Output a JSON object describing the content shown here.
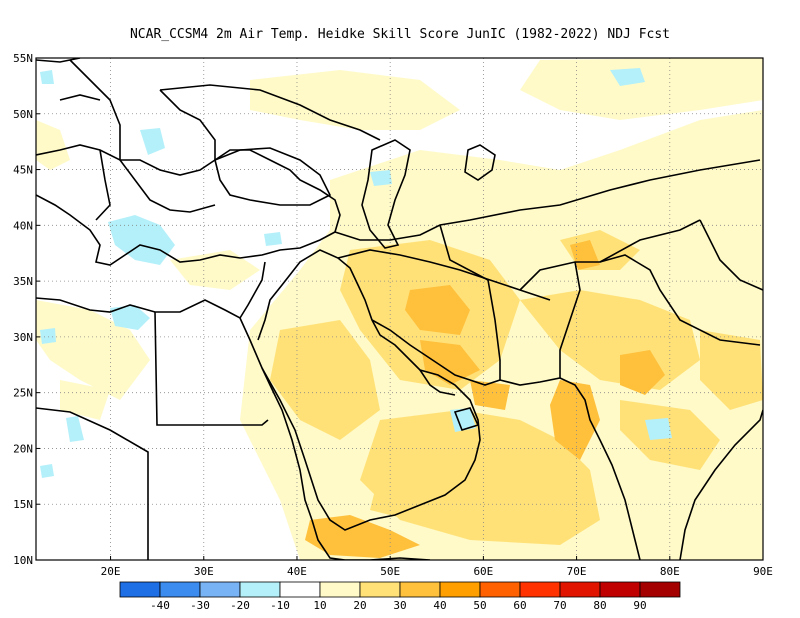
{
  "title": "NCAR_CCSM4  2m Air Temp. Heidke Skill Score JunIC (1982-2022) NDJ Fcst",
  "map": {
    "lon_range": [
      12,
      90
    ],
    "lat_range": [
      10,
      55
    ],
    "lon_ticks": [
      "20E",
      "30E",
      "40E",
      "50E",
      "60E",
      "70E",
      "80E",
      "90E"
    ],
    "lat_ticks": [
      "55N",
      "50N",
      "45N",
      "40N",
      "35N",
      "30N",
      "25N",
      "20N",
      "15N",
      "10N"
    ],
    "grid": "dotted"
  },
  "colorbar": {
    "labels": [
      "-40",
      "-30",
      "-20",
      "-10",
      "10",
      "20",
      "30",
      "40",
      "50",
      "60",
      "70",
      "80",
      "90"
    ],
    "colors": [
      "#1e6ee6",
      "#3c8cf0",
      "#78b4f5",
      "#b4f0fa",
      "#ffffff",
      "#fffac8",
      "#ffe178",
      "#ffc03c",
      "#ffa000",
      "#ff6000",
      "#ff3200",
      "#e11400",
      "#c00000",
      "#a50000"
    ]
  },
  "palette": {
    "c20": "#fffac8",
    "c30": "#ffe178",
    "c40": "#ffc03c",
    "cm10": "#b4f0fa",
    "cm20": "#78b4f5"
  }
}
